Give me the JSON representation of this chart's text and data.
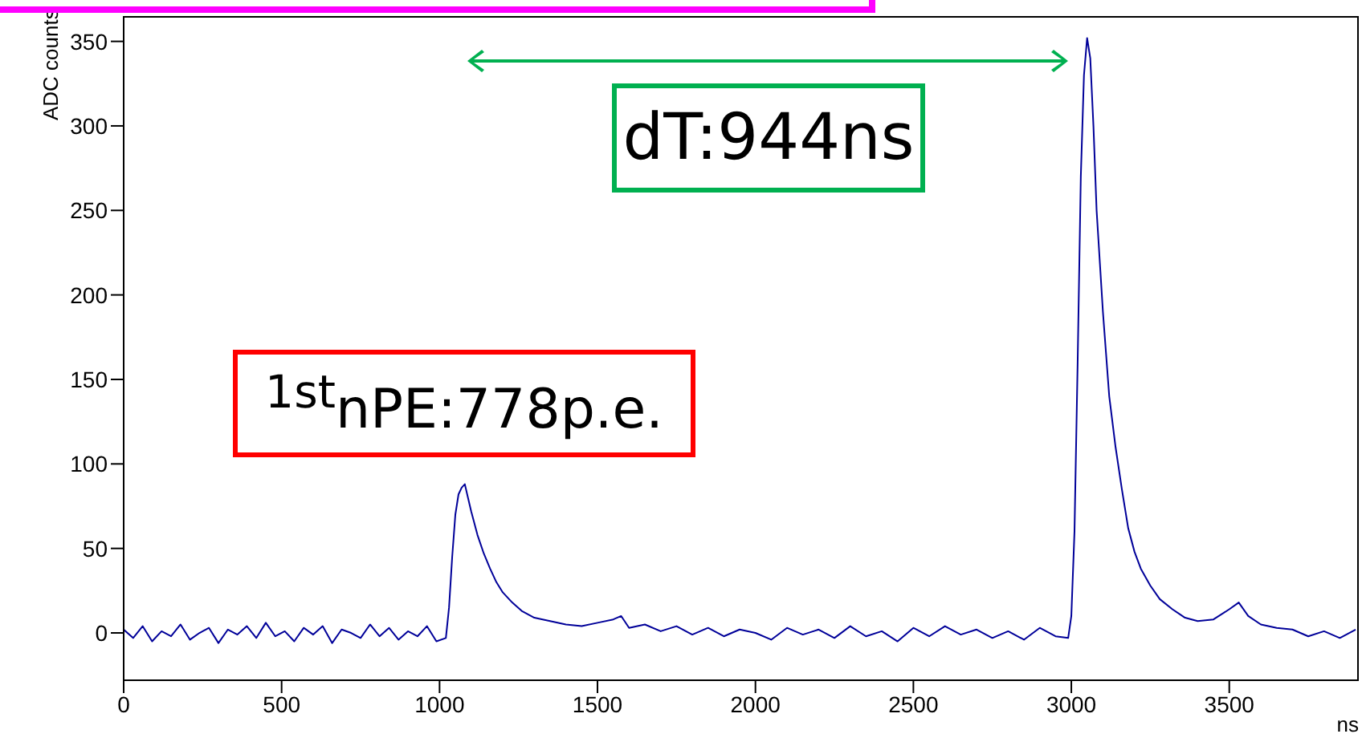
{
  "chart_data": {
    "type": "line",
    "ylabel": "ADC counts",
    "xlabel": "ns",
    "annotations": [
      "dT:944ns",
      "$^{1st}$nPE:778p.e."
    ],
    "x": [
      0,
      30,
      60,
      90,
      120,
      150,
      180,
      210,
      240,
      270,
      300,
      330,
      360,
      390,
      420,
      450,
      480,
      510,
      540,
      570,
      600,
      630,
      660,
      690,
      720,
      750,
      780,
      810,
      840,
      870,
      900,
      930,
      960,
      990,
      1020,
      1030,
      1040,
      1050,
      1060,
      1070,
      1080,
      1090,
      1100,
      1120,
      1140,
      1160,
      1180,
      1200,
      1230,
      1260,
      1300,
      1350,
      1400,
      1450,
      1500,
      1550,
      1575,
      1600,
      1650,
      1700,
      1750,
      1800,
      1850,
      1900,
      1950,
      2000,
      2050,
      2100,
      2150,
      2200,
      2250,
      2300,
      2350,
      2400,
      2450,
      2500,
      2550,
      2600,
      2650,
      2700,
      2750,
      2800,
      2850,
      2900,
      2950,
      2990,
      3000,
      3010,
      3020,
      3030,
      3040,
      3050,
      3060,
      3070,
      3080,
      3100,
      3120,
      3140,
      3160,
      3180,
      3200,
      3220,
      3250,
      3280,
      3320,
      3360,
      3400,
      3450,
      3500,
      3530,
      3560,
      3600,
      3650,
      3700,
      3750,
      3800,
      3850,
      3900
    ],
    "series": [
      {
        "color": "#000099",
        "values": [
          2,
          -3,
          4,
          -5,
          1,
          -2,
          5,
          -4,
          0,
          3,
          -6,
          2,
          -1,
          4,
          -3,
          6,
          -2,
          1,
          -5,
          3,
          -1,
          4,
          -6,
          2,
          0,
          -3,
          5,
          -2,
          3,
          -4,
          1,
          -2,
          4,
          -5,
          -3,
          15,
          45,
          70,
          82,
          86,
          88,
          80,
          72,
          58,
          47,
          38,
          30,
          24,
          18,
          13,
          9,
          7,
          5,
          4,
          6,
          8,
          10,
          3,
          5,
          1,
          4,
          -1,
          3,
          -2,
          2,
          0,
          -4,
          3,
          -1,
          2,
          -3,
          4,
          -2,
          1,
          -5,
          3,
          -2,
          4,
          -1,
          2,
          -3,
          1,
          -4,
          3,
          -2,
          -3,
          10,
          60,
          160,
          270,
          330,
          352,
          340,
          300,
          250,
          190,
          140,
          110,
          85,
          62,
          48,
          38,
          28,
          20,
          14,
          9,
          7,
          8,
          14,
          18,
          10,
          5,
          3,
          2,
          -2,
          1,
          -3,
          2
        ]
      }
    ],
    "xlim": [
      0,
      3910
    ],
    "ylim": [
      -28,
      365
    ],
    "xticks": [
      0,
      500,
      1000,
      1500,
      2000,
      2500,
      3000,
      3500
    ],
    "yticks": [
      0,
      50,
      100,
      150,
      200,
      250,
      300,
      350
    ],
    "grid": false,
    "legend": false,
    "marker": "none",
    "line_style": "solid"
  }
}
